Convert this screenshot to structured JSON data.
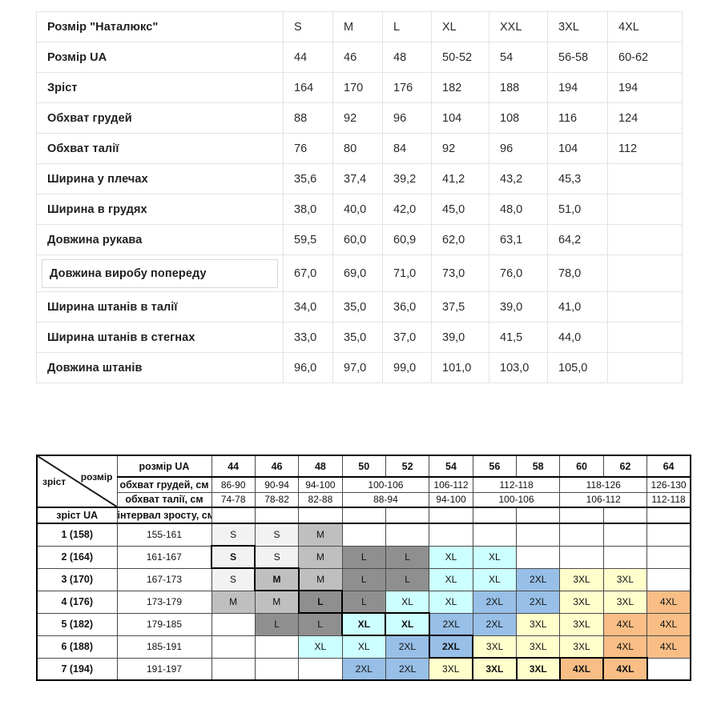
{
  "top_table": {
    "rows": [
      {
        "label": "Розмір \"Наталюкс\"",
        "values": [
          "S",
          "M",
          "L",
          "XL",
          "XXL",
          "3XL",
          "4XL"
        ]
      },
      {
        "label": "Розмір UA",
        "values": [
          "44",
          "46",
          "48",
          "50-52",
          "54",
          "56-58",
          "60-62"
        ]
      },
      {
        "label": "Зріст",
        "values": [
          "164",
          "170",
          "176",
          "182",
          "188",
          "194",
          "194"
        ]
      },
      {
        "label": "Обхват грудей",
        "values": [
          "88",
          "92",
          "96",
          "104",
          "108",
          "116",
          "124"
        ]
      },
      {
        "label": "Обхват талії",
        "values": [
          "76",
          "80",
          "84",
          "92",
          "96",
          "104",
          "112"
        ]
      },
      {
        "label": "Ширина у плечах",
        "values": [
          "35,6",
          "37,4",
          "39,2",
          "41,2",
          "43,2",
          "45,3",
          ""
        ]
      },
      {
        "label": "Ширина в грудях",
        "values": [
          "38,0",
          "40,0",
          "42,0",
          "45,0",
          "48,0",
          "51,0",
          ""
        ]
      },
      {
        "label": "Довжина рукава",
        "values": [
          "59,5",
          "60,0",
          "60,9",
          "62,0",
          "63,1",
          "64,2",
          ""
        ]
      },
      {
        "label": "Довжина виробу попереду",
        "boxed": true,
        "values": [
          "67,0",
          "69,0",
          "71,0",
          "73,0",
          "76,0",
          "78,0",
          ""
        ]
      },
      {
        "label": "Ширина штанів в талії",
        "values": [
          "34,0",
          "35,0",
          "36,0",
          "37,5",
          "39,0",
          "41,0",
          ""
        ]
      },
      {
        "label": "Ширина штанів в стегнах",
        "values": [
          "33,0",
          "35,0",
          "37,0",
          "39,0",
          "41,5",
          "44,0",
          ""
        ]
      },
      {
        "label": "Довжина штанів",
        "values": [
          "96,0",
          "97,0",
          "99,0",
          "101,0",
          "103,0",
          "105,0",
          ""
        ]
      }
    ]
  },
  "size_matrix": {
    "corner": {
      "bottom_left": "зріст",
      "top_right": "розмір"
    },
    "header": {
      "size_row_label": "розмір UA",
      "sizes": [
        "44",
        "46",
        "48",
        "50",
        "52",
        "54",
        "56",
        "58",
        "60",
        "62",
        "64"
      ],
      "chest_row_label": "обхват грудей, см",
      "chest_spans": [
        {
          "text": "86-90",
          "span": 1
        },
        {
          "text": "90-94",
          "span": 1
        },
        {
          "text": "94-100",
          "span": 1
        },
        {
          "text": "100-106",
          "span": 2
        },
        {
          "text": "106-112",
          "span": 1
        },
        {
          "text": "112-118",
          "span": 2
        },
        {
          "text": "118-126",
          "span": 2
        },
        {
          "text": "126-130",
          "span": 1
        }
      ],
      "waist_row_label": "обхват талії, см",
      "waist_spans": [
        {
          "text": "74-78",
          "span": 1
        },
        {
          "text": "78-82",
          "span": 1
        },
        {
          "text": "82-88",
          "span": 1
        },
        {
          "text": "88-94",
          "span": 2
        },
        {
          "text": "94-100",
          "span": 1
        },
        {
          "text": "100-106",
          "span": 2
        },
        {
          "text": "106-112",
          "span": 2
        },
        {
          "text": "112-118",
          "span": 1
        }
      ],
      "height_col_label": "зріст UA",
      "interval_col_label": "інтервал зросту, см"
    },
    "rows": [
      {
        "height": "1 (158)",
        "interval": "155-161",
        "cells": [
          {
            "t": "S",
            "c": "s"
          },
          {
            "t": "S",
            "c": "s"
          },
          {
            "t": "M",
            "c": "m"
          },
          null,
          null,
          null,
          null,
          null,
          null,
          null,
          null
        ]
      },
      {
        "height": "2 (164)",
        "interval": "161-167",
        "cells": [
          {
            "t": "S",
            "c": "s",
            "b": true
          },
          {
            "t": "S",
            "c": "s"
          },
          {
            "t": "M",
            "c": "m"
          },
          {
            "t": "L",
            "c": "l"
          },
          {
            "t": "L",
            "c": "l"
          },
          {
            "t": "XL",
            "c": "xl"
          },
          {
            "t": "XL",
            "c": "xl"
          },
          null,
          null,
          null,
          null
        ]
      },
      {
        "height": "3 (170)",
        "interval": "167-173",
        "cells": [
          {
            "t": "S",
            "c": "s"
          },
          {
            "t": "M",
            "c": "m",
            "b": true
          },
          {
            "t": "M",
            "c": "m"
          },
          {
            "t": "L",
            "c": "l"
          },
          {
            "t": "L",
            "c": "l"
          },
          {
            "t": "XL",
            "c": "xl"
          },
          {
            "t": "XL",
            "c": "xl"
          },
          {
            "t": "2XL",
            "c": "x2"
          },
          {
            "t": "3XL",
            "c": "x3"
          },
          {
            "t": "3XL",
            "c": "x3"
          },
          null
        ]
      },
      {
        "height": "4 (176)",
        "interval": "173-179",
        "cells": [
          {
            "t": "M",
            "c": "m"
          },
          {
            "t": "M",
            "c": "m"
          },
          {
            "t": "L",
            "c": "l",
            "b": true
          },
          {
            "t": "L",
            "c": "l"
          },
          {
            "t": "XL",
            "c": "xl"
          },
          {
            "t": "XL",
            "c": "xl"
          },
          {
            "t": "2XL",
            "c": "x2"
          },
          {
            "t": "2XL",
            "c": "x2"
          },
          {
            "t": "3XL",
            "c": "x3"
          },
          {
            "t": "3XL",
            "c": "x3"
          },
          {
            "t": "4XL",
            "c": "x4"
          }
        ]
      },
      {
        "height": "5 (182)",
        "interval": "179-185",
        "cells": [
          null,
          {
            "t": "L",
            "c": "l"
          },
          {
            "t": "L",
            "c": "l"
          },
          {
            "t": "XL",
            "c": "xl",
            "b": true
          },
          {
            "t": "XL",
            "c": "xl",
            "b": true
          },
          {
            "t": "2XL",
            "c": "x2"
          },
          {
            "t": "2XL",
            "c": "x2"
          },
          {
            "t": "3XL",
            "c": "x3"
          },
          {
            "t": "3XL",
            "c": "x3"
          },
          {
            "t": "4XL",
            "c": "x4"
          },
          {
            "t": "4XL",
            "c": "x4"
          }
        ]
      },
      {
        "height": "6 (188)",
        "interval": "185-191",
        "cells": [
          null,
          null,
          {
            "t": "XL",
            "c": "xl"
          },
          {
            "t": "XL",
            "c": "xl"
          },
          {
            "t": "2XL",
            "c": "x2"
          },
          {
            "t": "2XL",
            "c": "x2",
            "b": true
          },
          {
            "t": "3XL",
            "c": "x3"
          },
          {
            "t": "3XL",
            "c": "x3"
          },
          {
            "t": "3XL",
            "c": "x3"
          },
          {
            "t": "4XL",
            "c": "x4"
          },
          {
            "t": "4XL",
            "c": "x4"
          }
        ]
      },
      {
        "height": "7 (194)",
        "interval": "191-197",
        "cells": [
          null,
          null,
          null,
          {
            "t": "2XL",
            "c": "x2"
          },
          {
            "t": "2XL",
            "c": "x2"
          },
          {
            "t": "3XL",
            "c": "x3"
          },
          {
            "t": "3XL",
            "c": "x3",
            "b": true
          },
          {
            "t": "3XL",
            "c": "x3",
            "b": true
          },
          {
            "t": "4XL",
            "c": "x4",
            "b": true
          },
          {
            "t": "4XL",
            "c": "x4",
            "b": true
          },
          null
        ]
      }
    ]
  },
  "colors": {
    "s": "#F2F2F2",
    "m": "#BFBFBF",
    "l": "#8F8F8F",
    "xl": "#CCFFFF",
    "x2": "#97BFE7",
    "x3": "#FFFFCC",
    "x4": "#F8BE86"
  }
}
